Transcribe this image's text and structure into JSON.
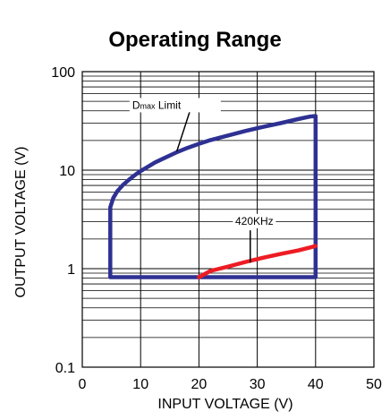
{
  "chart_data": {
    "type": "line",
    "title": "Operating Range",
    "xlabel": "INPUT VOLTAGE (V)",
    "ylabel": "OUTPUT VOLTAGE (V)",
    "xlim": [
      0,
      50
    ],
    "ylim": [
      0.1,
      100
    ],
    "y_scale": "log",
    "grid": true,
    "x_ticks": [
      0,
      10,
      20,
      30,
      40,
      50
    ],
    "x_tick_labels": [
      "0",
      "10",
      "20",
      "30",
      "40",
      "50"
    ],
    "y_ticks": [
      0.1,
      1,
      10,
      100
    ],
    "y_tick_labels": [
      "0.1",
      "1",
      "10",
      "100"
    ],
    "series": [
      {
        "color": "#2e3192",
        "x": [
          4.8,
          4.8,
          5.3,
          6,
          7,
          8,
          9,
          10,
          11,
          12.5,
          14,
          16,
          18,
          20,
          22,
          25,
          28,
          31,
          34,
          37,
          39,
          40,
          40,
          4.8
        ],
        "y": [
          0.82,
          4.2,
          5.2,
          6.1,
          7.1,
          8.0,
          8.9,
          9.8,
          10.6,
          12.0,
          13.2,
          15.0,
          16.8,
          18.5,
          20.2,
          22.5,
          25.0,
          27.5,
          30.0,
          33.0,
          35.0,
          35.5,
          0.82,
          0.82
        ]
      },
      {
        "color": "#ed1c24",
        "x": [
          20,
          22,
          25,
          28,
          31,
          34,
          37,
          39,
          40
        ],
        "y": [
          0.82,
          0.95,
          1.05,
          1.17,
          1.29,
          1.41,
          1.53,
          1.64,
          1.7
        ]
      }
    ],
    "annotations": [
      {
        "text_main": "D",
        "text_sub": "max",
        "text_rest": " Limit",
        "x": 17,
        "y": 42
      },
      {
        "text": "420KHz",
        "x": 29.5,
        "y": 2.8
      }
    ]
  }
}
